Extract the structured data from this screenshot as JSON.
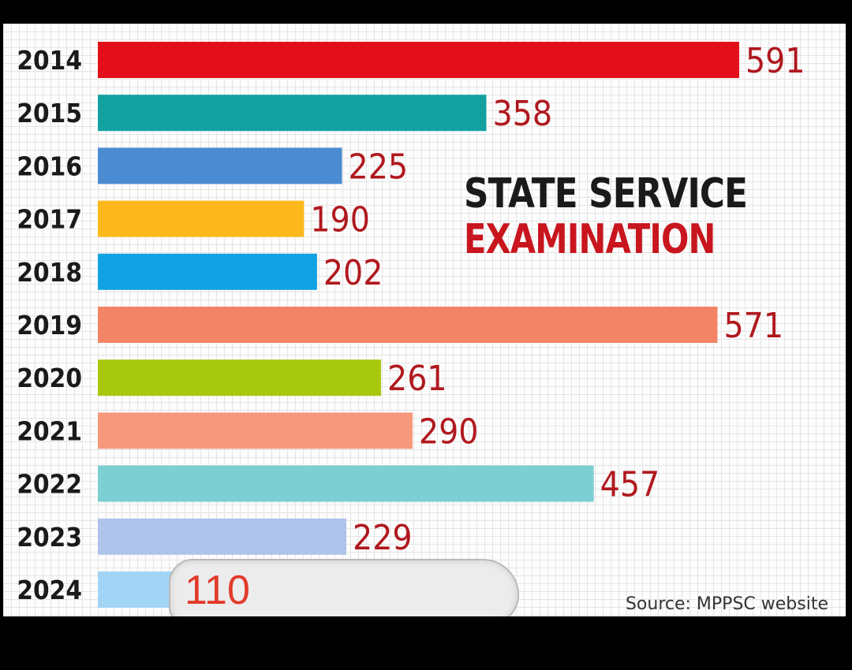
{
  "chart_data": {
    "type": "bar",
    "orientation": "horizontal",
    "title_line1": "STATE SERVICE",
    "title_line2": "EXAMINATION",
    "source": "Source: MPPSC website",
    "categories": [
      "2014",
      "2015",
      "2016",
      "2017",
      "2018",
      "2019",
      "2020",
      "2021",
      "2022",
      "2023",
      "2024"
    ],
    "values": [
      591,
      358,
      225,
      190,
      202,
      571,
      261,
      290,
      457,
      229,
      110
    ],
    "value_labels": [
      "591",
      "358",
      "225",
      "190",
      "202",
      "571",
      "261",
      "290",
      "457",
      "229",
      "110"
    ],
    "bar_colors": [
      "#e3101b",
      "#12a1a0",
      "#4b8bd1",
      "#fdb81c",
      "#11a2e4",
      "#f48466",
      "#a8c810",
      "#f5987c",
      "#7ecfd3",
      "#aec3ea",
      "#a2d4f6"
    ],
    "xlim": [
      0,
      591
    ],
    "grid": true,
    "legend": "none"
  }
}
